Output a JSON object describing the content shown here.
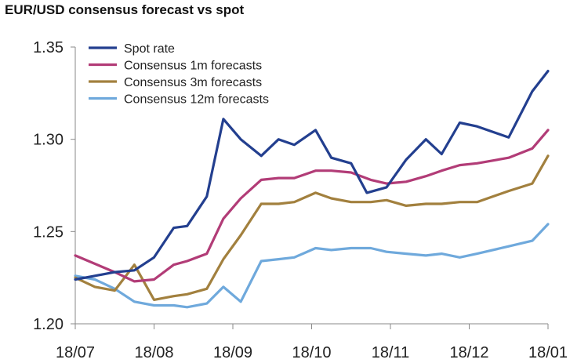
{
  "chart_data": {
    "type": "line",
    "title": "EUR/USD consensus forecast vs spot",
    "xlabel": "",
    "ylabel": "",
    "x_ticks": [
      "18/07",
      "18/08",
      "18/09",
      "18/10",
      "18/11",
      "18/12",
      "18/01"
    ],
    "xlim": [
      0,
      6
    ],
    "y_ticks": [
      "1.35",
      "1.30",
      "1.25",
      "1.20"
    ],
    "y_tick_values": [
      1.35,
      1.3,
      1.25,
      1.2
    ],
    "ylim": [
      1.2,
      1.35
    ],
    "grid": false,
    "legend_position": "top-left",
    "series": [
      {
        "name": "Spot rate",
        "color": "#233f8f",
        "x": [
          0,
          0.25,
          0.5,
          0.75,
          1.0,
          1.25,
          1.42,
          1.67,
          1.88,
          2.1,
          2.36,
          2.58,
          2.78,
          3.05,
          3.25,
          3.5,
          3.7,
          3.95,
          4.2,
          4.45,
          4.65,
          4.88,
          5.1,
          5.5,
          5.8,
          6.0
        ],
        "y": [
          1.224,
          1.226,
          1.228,
          1.229,
          1.236,
          1.252,
          1.253,
          1.269,
          1.311,
          1.3,
          1.291,
          1.3,
          1.297,
          1.305,
          1.29,
          1.287,
          1.271,
          1.274,
          1.289,
          1.3,
          1.292,
          1.309,
          1.307,
          1.301,
          1.326,
          1.337
        ]
      },
      {
        "name": "Consensus 1m forecasts",
        "color": "#b23c77",
        "x": [
          0,
          0.5,
          0.75,
          1.0,
          1.25,
          1.42,
          1.67,
          1.88,
          2.1,
          2.36,
          2.58,
          2.78,
          3.05,
          3.25,
          3.5,
          3.75,
          3.95,
          4.2,
          4.45,
          4.65,
          4.88,
          5.1,
          5.5,
          5.8,
          6.0
        ],
        "y": [
          1.237,
          1.228,
          1.223,
          1.224,
          1.232,
          1.234,
          1.238,
          1.257,
          1.268,
          1.278,
          1.279,
          1.279,
          1.283,
          1.283,
          1.282,
          1.278,
          1.276,
          1.277,
          1.28,
          1.283,
          1.286,
          1.287,
          1.29,
          1.295,
          1.305
        ]
      },
      {
        "name": "Consensus 3m forecasts",
        "color": "#a2803e",
        "x": [
          0,
          0.25,
          0.5,
          0.75,
          1.0,
          1.25,
          1.42,
          1.67,
          1.88,
          2.1,
          2.36,
          2.58,
          2.78,
          3.05,
          3.25,
          3.5,
          3.75,
          3.95,
          4.2,
          4.45,
          4.65,
          4.88,
          5.1,
          5.5,
          5.8,
          6.0
        ],
        "y": [
          1.225,
          1.22,
          1.218,
          1.232,
          1.213,
          1.215,
          1.216,
          1.219,
          1.235,
          1.248,
          1.265,
          1.265,
          1.266,
          1.271,
          1.268,
          1.266,
          1.266,
          1.267,
          1.264,
          1.265,
          1.265,
          1.266,
          1.266,
          1.272,
          1.276,
          1.291
        ]
      },
      {
        "name": "Consensus 12m forecasts",
        "color": "#6fa9dc",
        "x": [
          0,
          0.25,
          0.5,
          0.75,
          1.0,
          1.25,
          1.42,
          1.67,
          1.88,
          2.1,
          2.36,
          2.58,
          2.78,
          3.05,
          3.25,
          3.5,
          3.75,
          3.95,
          4.2,
          4.45,
          4.65,
          4.88,
          5.1,
          5.5,
          5.8,
          6.0
        ],
        "y": [
          1.226,
          1.224,
          1.219,
          1.212,
          1.21,
          1.21,
          1.209,
          1.211,
          1.22,
          1.212,
          1.234,
          1.235,
          1.236,
          1.241,
          1.24,
          1.241,
          1.241,
          1.239,
          1.238,
          1.237,
          1.238,
          1.236,
          1.238,
          1.242,
          1.245,
          1.254
        ]
      }
    ]
  }
}
